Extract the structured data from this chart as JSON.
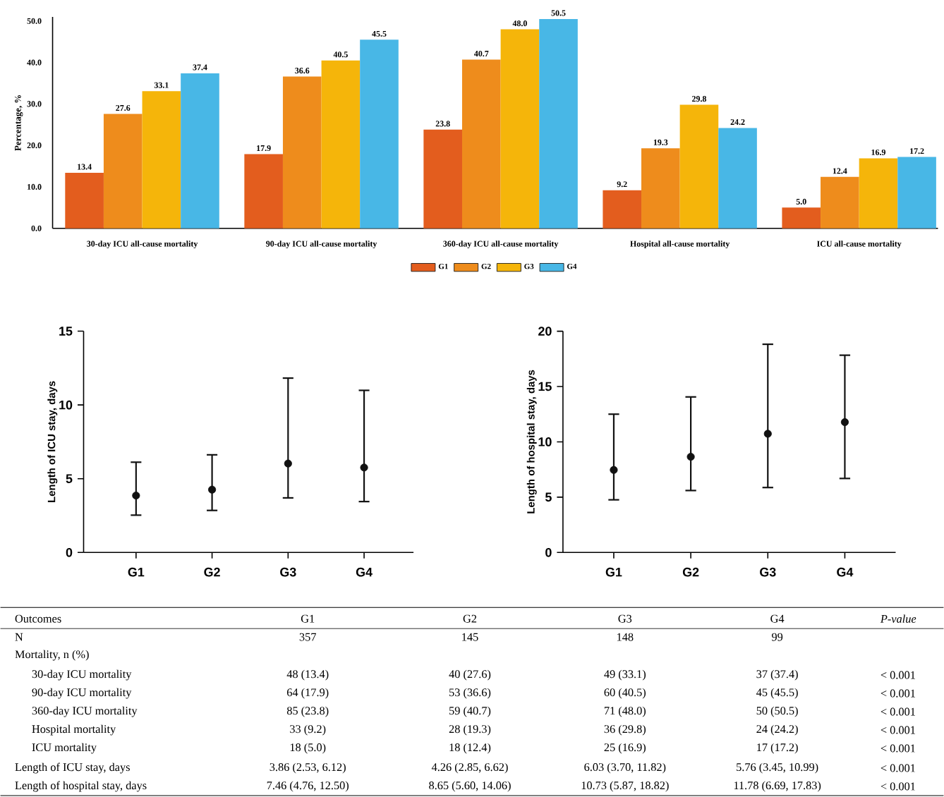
{
  "chart_data": [
    {
      "type": "bar",
      "ylabel": "Percentage, %",
      "categories": [
        "30-day ICU all-cause mortality",
        "90-day ICU all-cause mortality",
        "360-day ICU all-cause mortality",
        "Hospital all-cause mortality",
        "ICU all-cause mortality"
      ],
      "series": [
        {
          "name": "G1",
          "color": "#e35d1e",
          "values": [
            13.4,
            17.9,
            23.8,
            9.2,
            5.0
          ],
          "value_labels": [
            "13.4",
            "17.9",
            "23.8",
            "9.2",
            "5.0"
          ]
        },
        {
          "name": "G2",
          "color": "#ee8c1c",
          "values": [
            27.6,
            36.6,
            40.7,
            19.3,
            12.4
          ],
          "value_labels": [
            "27.6",
            "36.6",
            "40.7",
            "19.3",
            "12.4"
          ]
        },
        {
          "name": "G3",
          "color": "#f5b50a",
          "values": [
            33.1,
            40.5,
            48.0,
            29.8,
            16.9
          ],
          "value_labels": [
            "33.1",
            "40.5",
            "48.0",
            "29.8",
            "16.9"
          ]
        },
        {
          "name": "G4",
          "color": "#48b7e6",
          "values": [
            37.4,
            45.5,
            50.5,
            24.2,
            17.2
          ],
          "value_labels": [
            "37.4",
            "45.5",
            "50.5",
            "24.2",
            "17.2"
          ]
        }
      ],
      "ylim": [
        0,
        51
      ],
      "yticks": [
        {
          "value": 0,
          "label": "0.0"
        },
        {
          "value": 10,
          "label": "10.0"
        },
        {
          "value": 20,
          "label": "20.0"
        },
        {
          "value": 30,
          "label": "30.0"
        },
        {
          "value": 40,
          "label": "40.0"
        },
        {
          "value": 50,
          "label": "50.0"
        }
      ],
      "legend": "bottom"
    },
    {
      "type": "scatter",
      "ylabel": "Length of ICU stay, days",
      "categories": [
        "G1",
        "G2",
        "G3",
        "G4"
      ],
      "color": "#111111",
      "marker": "circle",
      "values": [
        3.86,
        4.26,
        6.03,
        5.76
      ],
      "errors": [
        [
          2.53,
          6.12
        ],
        [
          2.85,
          6.62
        ],
        [
          3.7,
          11.82
        ],
        [
          3.45,
          10.99
        ]
      ],
      "ylim": [
        0,
        15
      ],
      "yticks": [
        0,
        5,
        10,
        15
      ]
    },
    {
      "type": "scatter",
      "ylabel": "Length of hospital stay, days",
      "categories": [
        "G1",
        "G2",
        "G3",
        "G4"
      ],
      "color": "#111111",
      "marker": "circle",
      "values": [
        7.46,
        8.65,
        10.73,
        11.78
      ],
      "errors": [
        [
          4.76,
          12.5
        ],
        [
          5.6,
          14.06
        ],
        [
          5.87,
          18.82
        ],
        [
          6.69,
          17.83
        ]
      ],
      "ylim": [
        0,
        20
      ],
      "yticks": [
        0,
        5,
        10,
        15,
        20
      ]
    },
    {
      "type": "other",
      "categories": [
        "Outcomes",
        "G1",
        "G2",
        "G3",
        "G4",
        "P-value"
      ],
      "y_categories": [
        "N",
        "Mortality, n (%)",
        "30-day ICU mortality",
        "90-day ICU mortality",
        "360-day ICU mortality",
        "Hospital mortality",
        "ICU mortality",
        "Length of ICU stay, days",
        "Length of hospital stay, days"
      ],
      "cell_labels": [
        [
          "357",
          "145",
          "148",
          "99",
          null
        ],
        [
          null,
          null,
          null,
          null,
          null
        ],
        [
          "48 (13.4)",
          "40 (27.6)",
          "49 (33.1)",
          "37 (37.4)",
          "< 0.001"
        ],
        [
          "64 (17.9)",
          "53 (36.6)",
          "60 (40.5)",
          "45 (45.5)",
          "< 0.001"
        ],
        [
          "85 (23.8)",
          "59 (40.7)",
          "71 (48.0)",
          "50 (50.5)",
          "< 0.001"
        ],
        [
          "33 (9.2)",
          "28 (19.3)",
          "36 (29.8)",
          "24 (24.2)",
          "< 0.001"
        ],
        [
          "18 (5.0)",
          "18 (12.4)",
          "25 (16.9)",
          "17 (17.2)",
          "< 0.001"
        ],
        [
          "3.86 (2.53, 6.12)",
          "4.26 (2.85, 6.62)",
          "6.03 (3.70, 11.82)",
          "5.76 (3.45, 10.99)",
          "< 0.001"
        ],
        [
          "7.46 (4.76, 12.50)",
          "8.65 (5.60, 14.06)",
          "10.73 (5.87, 18.82)",
          "11.78 (6.69, 17.83)",
          "< 0.001"
        ]
      ]
    }
  ]
}
